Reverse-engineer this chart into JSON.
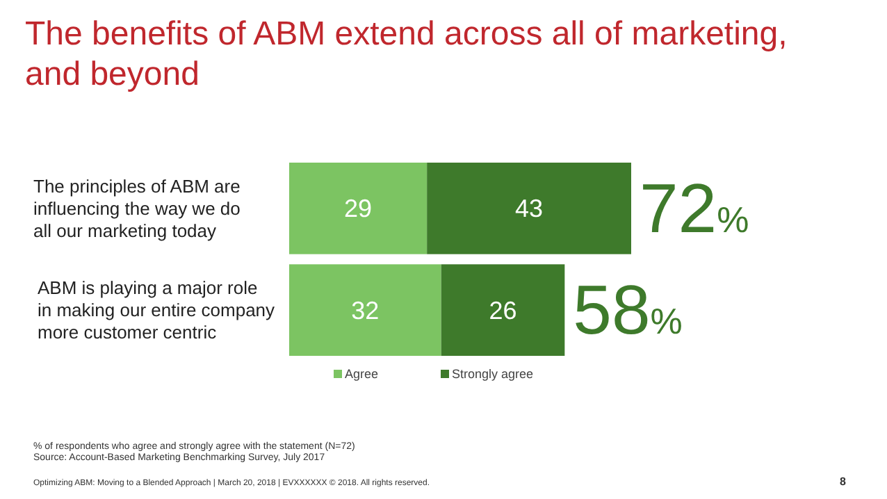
{
  "chart_data": {
    "type": "bar",
    "orientation": "horizontal",
    "stacked": true,
    "title": "The benefits of ABM extend across all of marketing, and beyond",
    "categories": [
      "The principles of ABM are influencing the way we do all our marketing today",
      "ABM is playing a major role in making our entire company more customer centric"
    ],
    "series": [
      {
        "name": "Agree",
        "color": "#7cc462",
        "values": [
          29,
          32
        ]
      },
      {
        "name": "Strongly agree",
        "color": "#3e7a2b",
        "values": [
          43,
          26
        ]
      }
    ],
    "data_labels": true,
    "totals": [
      "72%",
      "58%"
    ],
    "legend": "bottom",
    "annotations": [
      "% of respondents who agree and strongly agree with the statement (N=72)",
      "Source: Account-Based Marketing Benchmarking Survey, July 2017",
      "Optimizing ABM: Moving to a Blended Approach | March 20, 2018 | EVXXXXXX © 2018. All rights reserved.",
      "8"
    ]
  }
}
